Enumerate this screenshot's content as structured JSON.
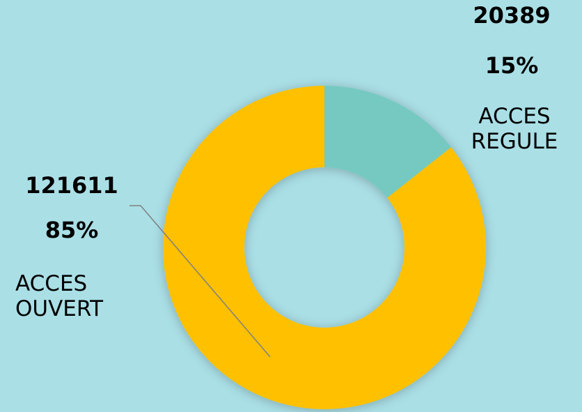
{
  "chart_data": {
    "type": "donut",
    "categories": [
      "ACCES REGULE",
      "ACCES OUVERT"
    ],
    "values": [
      20389,
      121611
    ],
    "percent_labels": [
      "15%",
      "85%"
    ],
    "colors": [
      "#74c9c0",
      "#ffc000"
    ]
  }
}
